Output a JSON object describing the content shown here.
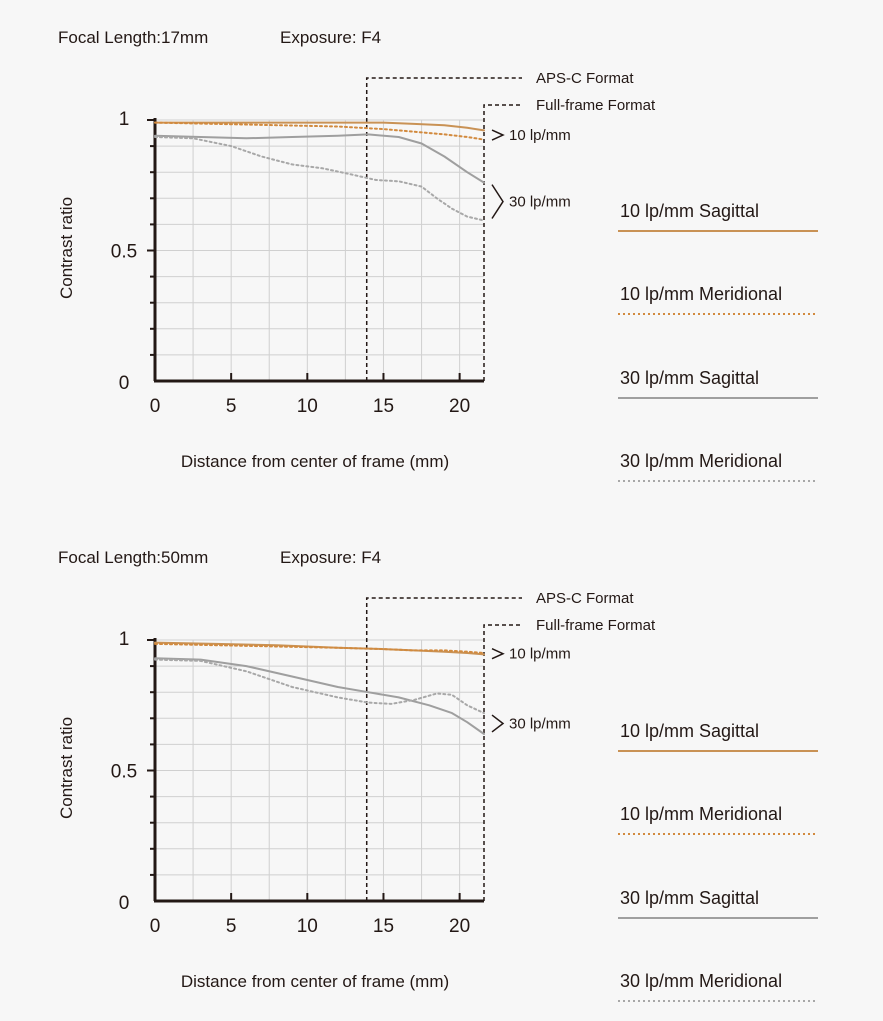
{
  "colors": {
    "sagittal_10": "#c99255",
    "meridional_10": "#d28a3e",
    "sagittal_30": "#9f9f9f",
    "meridional_30": "#a8a8a8",
    "axis": "#231815",
    "grid": "#d0d0d0",
    "background": "#f7f7f7"
  },
  "chart_data": [
    {
      "type": "line",
      "focal_label": "Focal Length:17mm",
      "exposure_label": "Exposure: F4",
      "ylabel": "Contrast ratio",
      "xlabel": "Distance from center of frame (mm)",
      "xlim": [
        0,
        21.6
      ],
      "ylim": [
        0,
        1
      ],
      "x_ticks": [
        "0",
        "5",
        "10",
        "15",
        "20"
      ],
      "y_ticks": [
        "0",
        "0.5",
        "1"
      ],
      "grid": true,
      "apsc_label": "APS-C Format",
      "apsc_x": 13.9,
      "fullframe_label": "Full-frame Format",
      "fullframe_x": 21.6,
      "group_label_10": "10 lp/mm",
      "group_label_30": "30 lp/mm",
      "series": [
        {
          "name": "10 lp/mm Sagittal",
          "style": "solid",
          "color_key": "sagittal_10",
          "points": [
            [
              0,
              0.99
            ],
            [
              4,
              0.99
            ],
            [
              8,
              0.99
            ],
            [
              12,
              0.99
            ],
            [
              15,
              0.99
            ],
            [
              17,
              0.985
            ],
            [
              19,
              0.98
            ],
            [
              20.5,
              0.97
            ],
            [
              21.6,
              0.96
            ]
          ]
        },
        {
          "name": "10 lp/mm Meridional",
          "style": "dotted",
          "color_key": "meridional_10",
          "points": [
            [
              0,
              0.99
            ],
            [
              4,
              0.985
            ],
            [
              8,
              0.98
            ],
            [
              12,
              0.975
            ],
            [
              15,
              0.965
            ],
            [
              17,
              0.955
            ],
            [
              19,
              0.945
            ],
            [
              20.5,
              0.935
            ],
            [
              21.6,
              0.925
            ]
          ]
        },
        {
          "name": "30 lp/mm Sagittal",
          "style": "solid",
          "color_key": "sagittal_30",
          "points": [
            [
              0,
              0.94
            ],
            [
              3,
              0.935
            ],
            [
              6,
              0.93
            ],
            [
              9,
              0.935
            ],
            [
              12,
              0.94
            ],
            [
              14,
              0.945
            ],
            [
              16,
              0.935
            ],
            [
              17.5,
              0.91
            ],
            [
              19,
              0.86
            ],
            [
              20.5,
              0.8
            ],
            [
              21.6,
              0.76
            ]
          ]
        },
        {
          "name": "30 lp/mm Meridional",
          "style": "dotted",
          "color_key": "meridional_30",
          "points": [
            [
              0,
              0.935
            ],
            [
              2.5,
              0.93
            ],
            [
              5,
              0.9
            ],
            [
              7,
              0.86
            ],
            [
              9,
              0.83
            ],
            [
              11,
              0.815
            ],
            [
              13,
              0.79
            ],
            [
              14.5,
              0.77
            ],
            [
              16,
              0.765
            ],
            [
              17.5,
              0.745
            ],
            [
              18.5,
              0.7
            ],
            [
              19.5,
              0.66
            ],
            [
              20.5,
              0.63
            ],
            [
              21.6,
              0.615
            ]
          ]
        }
      ]
    },
    {
      "type": "line",
      "focal_label": "Focal Length:50mm",
      "exposure_label": "Exposure: F4",
      "ylabel": "Contrast ratio",
      "xlabel": "Distance from center of frame (mm)",
      "xlim": [
        0,
        21.6
      ],
      "ylim": [
        0,
        1
      ],
      "x_ticks": [
        "0",
        "5",
        "10",
        "15",
        "20"
      ],
      "y_ticks": [
        "0",
        "0.5",
        "1"
      ],
      "grid": true,
      "apsc_label": "APS-C Format",
      "apsc_x": 13.9,
      "fullframe_label": "Full-frame Format",
      "fullframe_x": 21.6,
      "group_label_10": "10 lp/mm",
      "group_label_30": "30 lp/mm",
      "series": [
        {
          "name": "10 lp/mm Sagittal",
          "style": "solid",
          "color_key": "sagittal_10",
          "points": [
            [
              0,
              0.99
            ],
            [
              4,
              0.985
            ],
            [
              8,
              0.98
            ],
            [
              12,
              0.97
            ],
            [
              15,
              0.965
            ],
            [
              17,
              0.96
            ],
            [
              19,
              0.955
            ],
            [
              20.5,
              0.95
            ],
            [
              21.6,
              0.945
            ]
          ]
        },
        {
          "name": "10 lp/mm Meridional",
          "style": "dotted",
          "color_key": "meridional_10",
          "points": [
            [
              0,
              0.985
            ],
            [
              4,
              0.98
            ],
            [
              8,
              0.975
            ],
            [
              12,
              0.97
            ],
            [
              15,
              0.965
            ],
            [
              17,
              0.96
            ],
            [
              19,
              0.96
            ],
            [
              20.5,
              0.955
            ],
            [
              21.6,
              0.95
            ]
          ]
        },
        {
          "name": "30 lp/mm Sagittal",
          "style": "solid",
          "color_key": "sagittal_30",
          "points": [
            [
              0,
              0.93
            ],
            [
              3,
              0.925
            ],
            [
              6,
              0.9
            ],
            [
              9,
              0.86
            ],
            [
              12,
              0.82
            ],
            [
              14,
              0.8
            ],
            [
              16,
              0.78
            ],
            [
              18,
              0.75
            ],
            [
              19.5,
              0.72
            ],
            [
              20.5,
              0.685
            ],
            [
              21.6,
              0.64
            ]
          ]
        },
        {
          "name": "30 lp/mm Meridional",
          "style": "dotted",
          "color_key": "meridional_30",
          "points": [
            [
              0,
              0.925
            ],
            [
              3,
              0.92
            ],
            [
              6,
              0.88
            ],
            [
              9,
              0.82
            ],
            [
              12,
              0.78
            ],
            [
              14,
              0.76
            ],
            [
              15.5,
              0.755
            ],
            [
              17,
              0.77
            ],
            [
              18.5,
              0.795
            ],
            [
              19.5,
              0.79
            ],
            [
              20.5,
              0.75
            ],
            [
              21.6,
              0.72
            ]
          ]
        }
      ]
    }
  ]
}
